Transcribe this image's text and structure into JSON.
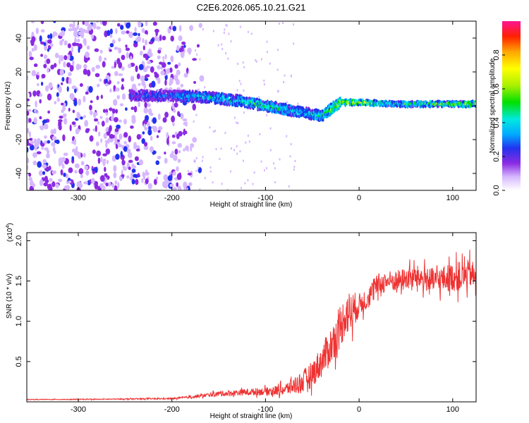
{
  "figure_title": "C2E6.2026.065.10.21.G21",
  "chart_data": [
    {
      "type": "heatmap",
      "title": "",
      "xlabel": "Height of straight line (km)",
      "ylabel": "Frequency (Hz)",
      "xlim": [
        -355,
        125
      ],
      "ylim": [
        -50,
        50
      ],
      "xticks": [
        -300,
        -200,
        -100,
        0,
        100
      ],
      "yticks": [
        -40,
        -20,
        0,
        20,
        40
      ],
      "colorbar": {
        "label": "Normalized spectral amplitude",
        "range": [
          0,
          1
        ],
        "ticks": [
          "0.0",
          "0.2",
          "0.4",
          "0.6",
          "0.8"
        ],
        "colors": [
          "#ffffff",
          "#d6b8ff",
          "#8a2be2",
          "#2233ee",
          "#00a8ff",
          "#00e8e0",
          "#00e000",
          "#aaf000",
          "#ffff00",
          "#ffa500",
          "#ff2000",
          "#ff1493"
        ]
      },
      "signal_track": {
        "description_x": [
          -245,
          -200,
          -160,
          -130,
          -100,
          -70,
          -40,
          -20,
          0,
          40,
          80,
          125
        ],
        "center_freq": [
          6,
          6,
          5,
          3,
          0,
          -3,
          -6,
          2,
          2,
          1,
          1,
          1
        ],
        "amplitude": [
          0.3,
          0.35,
          0.45,
          0.5,
          0.55,
          0.45,
          0.5,
          0.75,
          0.7,
          0.55,
          0.6,
          0.7
        ]
      },
      "noise_region": {
        "x_from": -355,
        "x_to": -180,
        "amplitude": 0.25
      }
    },
    {
      "type": "line",
      "title": "",
      "xlabel": "Height of straight line (km)",
      "ylabel": "SNR (10 * v/v)",
      "yscale_label": "(x10",
      "yscale_exponent": "4",
      "yscale_close": ")",
      "xlim": [
        -355,
        125
      ],
      "ylim": [
        0,
        21000
      ],
      "xticks": [
        -300,
        -200,
        -100,
        0,
        100
      ],
      "yticks": [
        0.5,
        1.0,
        1.5,
        2.0
      ],
      "ytick_labels": [
        "0.5",
        "1.0",
        "1.5",
        "2.0"
      ],
      "series": [
        {
          "name": "SNR",
          "color": "#ee3333",
          "x": [
            -355,
            -300,
            -250,
            -200,
            -180,
            -150,
            -120,
            -100,
            -80,
            -60,
            -50,
            -40,
            -30,
            -20,
            -15,
            -10,
            0,
            10,
            20,
            30,
            40,
            60,
            80,
            100,
            110,
            120,
            125
          ],
          "y": [
            300,
            300,
            350,
            400,
            600,
            1000,
            1200,
            1300,
            1500,
            2500,
            3500,
            5000,
            7000,
            9000,
            11000,
            11000,
            12000,
            13000,
            14500,
            15000,
            15000,
            15500,
            15000,
            15500,
            15500,
            16000,
            15000
          ],
          "noise": [
            50,
            60,
            80,
            100,
            200,
            400,
            500,
            600,
            900,
            1800,
            2000,
            2500,
            3000,
            3000,
            3500,
            3500,
            1800,
            1800,
            1800,
            1600,
            1700,
            1800,
            2000,
            2200,
            2400,
            2200,
            2200
          ]
        }
      ]
    }
  ]
}
